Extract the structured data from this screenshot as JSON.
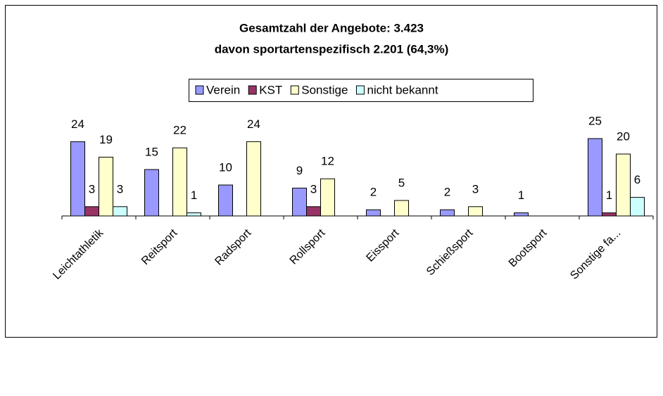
{
  "chart_data": {
    "type": "bar",
    "title": "Gesamtzahl der Angebote: 3.423",
    "subtitle": "davon sportartenspezifisch 2.201 (64,3%)",
    "categories": [
      "Leichtathletik",
      "Reitsport",
      "Radsport",
      "Rollsport",
      "Eissport",
      "Schießsport",
      "Bootsport",
      "Sonstige fa..."
    ],
    "series": [
      {
        "name": "Verein",
        "color": "#9999ff",
        "values": [
          24,
          15,
          10,
          9,
          2,
          2,
          1,
          25
        ]
      },
      {
        "name": "KST",
        "color": "#993366",
        "values": [
          3,
          null,
          null,
          3,
          null,
          null,
          null,
          1
        ]
      },
      {
        "name": "Sonstige",
        "color": "#ffffcc",
        "values": [
          19,
          22,
          24,
          12,
          5,
          3,
          null,
          20
        ]
      },
      {
        "name": "nicht bekannt",
        "color": "#ccffff",
        "values": [
          3,
          1,
          null,
          null,
          null,
          null,
          null,
          6
        ]
      }
    ],
    "ylim": [
      0,
      30
    ]
  }
}
